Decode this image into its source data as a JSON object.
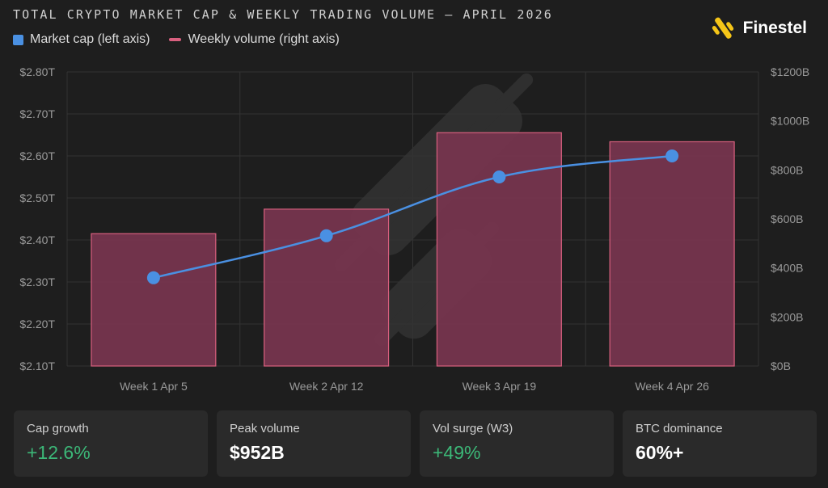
{
  "title": "TOTAL CRYPTO MARKET CAP & WEEKLY TRADING VOLUME — APRIL 2026",
  "brand": {
    "name": "Finestel"
  },
  "legend": {
    "cap_label": "Market cap (left axis)",
    "vol_label": "Weekly volume (right axis)"
  },
  "colors": {
    "cap_line": "#4a90e2",
    "vol_bar_fill": "#7a3550",
    "vol_bar_stroke": "#d9607f",
    "positive": "#3cb878"
  },
  "chart_data": {
    "type": "bar",
    "categories": [
      "Week 1 Apr 5",
      "Week 2 Apr 12",
      "Week 3 Apr 19",
      "Week 4 Apr 26"
    ],
    "series": [
      {
        "name": "Weekly volume (right axis)",
        "axis": "right",
        "type": "bar",
        "values": [
          540,
          640,
          952,
          915
        ]
      },
      {
        "name": "Market cap (left axis)",
        "axis": "left",
        "type": "line",
        "values": [
          2.31,
          2.41,
          2.55,
          2.6
        ]
      }
    ],
    "y_left": {
      "min": 2.1,
      "max": 2.8,
      "ticks": [
        "$2.10T",
        "$2.20T",
        "$2.30T",
        "$2.40T",
        "$2.50T",
        "$2.60T",
        "$2.70T",
        "$2.80T"
      ]
    },
    "y_right": {
      "min": 0,
      "max": 1200,
      "ticks": [
        "$0B",
        "$200B",
        "$400B",
        "$600B",
        "$800B",
        "$1000B",
        "$1200B"
      ]
    },
    "grid": true,
    "legend_position": "top-left"
  },
  "cards": [
    {
      "label": "Cap growth",
      "value": "+12.6%",
      "positive": true
    },
    {
      "label": "Peak volume",
      "value": "$952B",
      "positive": false
    },
    {
      "label": "Vol surge (W3)",
      "value": "+49%",
      "positive": true
    },
    {
      "label": "BTC dominance",
      "value": "60%+",
      "positive": false
    }
  ]
}
